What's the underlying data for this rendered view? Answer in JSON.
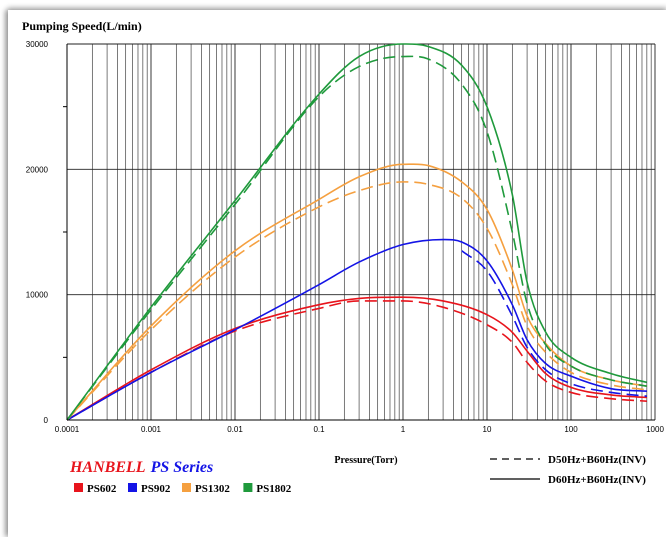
{
  "chart_data": {
    "type": "line",
    "title": "Pumping Speed(L/min)",
    "xlabel": "Pressure(Torr)",
    "xscale": "log",
    "xlim": [
      0.0001,
      1000
    ],
    "ylim": [
      0,
      30000
    ],
    "x_ticks": [
      "0.0001",
      "0.001",
      "0.01",
      "0.1",
      "1",
      "10",
      "100",
      "1000"
    ],
    "y_ticks": [
      "0",
      "10000",
      "20000",
      "30000"
    ],
    "grid": "log-x",
    "brand": "HANBELL",
    "series_title": "PS Series",
    "legend_models": [
      {
        "name": "PS602",
        "color": "#e8141c"
      },
      {
        "name": "PS902",
        "color": "#1414e6"
      },
      {
        "name": "PS1302",
        "color": "#f5a040"
      },
      {
        "name": "PS1802",
        "color": "#1f9a3c"
      }
    ],
    "line_styles": [
      {
        "label": "D50Hz+B60Hz(INV)",
        "dash": true
      },
      {
        "label": "D60Hz+B60Hz(INV)",
        "dash": false
      }
    ],
    "series": [
      {
        "model": "PS602",
        "style": "D60Hz+B60Hz(INV)",
        "color": "#e8141c",
        "x": [
          0.0001,
          0.001,
          0.01,
          0.1,
          0.3,
          1,
          3,
          10,
          20,
          30,
          50,
          100,
          300,
          800
        ],
        "y": [
          0,
          4000,
          7300,
          9200,
          9700,
          9800,
          9500,
          8400,
          7000,
          5500,
          3700,
          2600,
          2000,
          1800
        ]
      },
      {
        "model": "PS602",
        "style": "D50Hz+B60Hz(INV)",
        "color": "#e8141c",
        "x": [
          0.0001,
          0.001,
          0.01,
          0.1,
          0.3,
          1,
          3,
          10,
          20,
          30,
          50,
          100,
          300,
          800
        ],
        "y": [
          0,
          3800,
          7100,
          8900,
          9500,
          9500,
          9000,
          7600,
          6200,
          4600,
          3100,
          2200,
          1700,
          1500
        ]
      },
      {
        "model": "PS902",
        "style": "D60Hz+B60Hz(INV)",
        "color": "#1414e6",
        "x": [
          0.0001,
          0.001,
          0.01,
          0.1,
          0.3,
          1,
          3,
          5,
          10,
          20,
          30,
          50,
          100,
          300,
          800
        ],
        "y": [
          0,
          3800,
          7200,
          10800,
          12600,
          14000,
          14400,
          14200,
          12700,
          9200,
          6400,
          4500,
          3500,
          2500,
          2300
        ]
      },
      {
        "model": "PS902",
        "style": "D50Hz+B60Hz(INV)",
        "color": "#1414e6",
        "x": [
          5,
          10,
          20,
          30,
          50,
          100,
          300,
          800
        ],
        "y": [
          13500,
          11900,
          8300,
          5800,
          4000,
          2900,
          2200,
          1900
        ]
      },
      {
        "model": "PS1302",
        "style": "D60Hz+B60Hz(INV)",
        "color": "#f5a040",
        "x": [
          0.0001,
          0.001,
          0.01,
          0.1,
          0.3,
          1,
          2,
          5,
          10,
          20,
          30,
          50,
          100,
          300,
          800
        ],
        "y": [
          0,
          7500,
          13500,
          17600,
          19400,
          20400,
          20300,
          19000,
          16800,
          12000,
          8300,
          6100,
          4300,
          3200,
          2700
        ]
      },
      {
        "model": "PS1302",
        "style": "D50Hz+B60Hz(INV)",
        "color": "#f5a040",
        "x": [
          0.0001,
          0.001,
          0.01,
          0.1,
          0.3,
          1,
          2,
          5,
          10,
          20,
          30,
          50,
          100,
          300,
          800
        ],
        "y": [
          0,
          7200,
          13000,
          17000,
          18300,
          19000,
          18800,
          17700,
          15300,
          10800,
          7500,
          5400,
          3800,
          2800,
          2400
        ]
      },
      {
        "model": "PS1802",
        "style": "D60Hz+B60Hz(INV)",
        "color": "#1f9a3c",
        "x": [
          0.0001,
          0.001,
          0.01,
          0.1,
          0.3,
          1,
          2,
          5,
          10,
          20,
          30,
          50,
          100,
          300,
          800
        ],
        "y": [
          0,
          9000,
          17500,
          26000,
          29000,
          30000,
          29800,
          28300,
          25000,
          18000,
          11000,
          7000,
          5000,
          3700,
          3000
        ]
      },
      {
        "model": "PS1802",
        "style": "D50Hz+B60Hz(INV)",
        "color": "#1f9a3c",
        "x": [
          0.0001,
          0.001,
          0.01,
          0.1,
          0.3,
          1,
          2,
          5,
          10,
          20,
          30,
          50,
          100,
          300,
          800
        ],
        "y": [
          0,
          8800,
          17200,
          25800,
          28200,
          29000,
          28800,
          26800,
          23000,
          15000,
          9300,
          6000,
          4300,
          3200,
          2700
        ]
      }
    ]
  }
}
